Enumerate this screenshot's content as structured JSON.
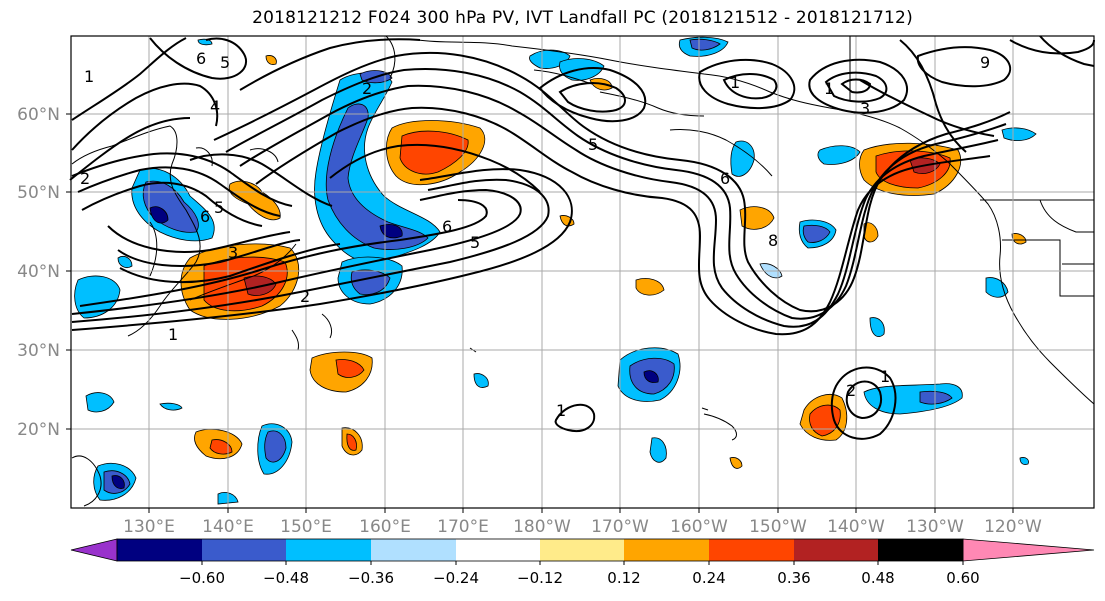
{
  "title": "2018121212 F024 300 hPa PV, IVT Landfall PC (2018121512 - 2018121712)",
  "map": {
    "lat_labels": [
      "60°N",
      "50°N",
      "40°N",
      "30°N",
      "20°N"
    ],
    "lon_labels": [
      "130°E",
      "140°E",
      "150°E",
      "160°E",
      "170°E",
      "180°W",
      "170°W",
      "160°W",
      "150°W",
      "140°W",
      "130°W",
      "120°W"
    ],
    "contour_labels": [
      "1",
      "2",
      "4",
      "5",
      "6",
      "1",
      "2",
      "3",
      "5",
      "6",
      "6",
      "5",
      "9",
      "1",
      "3",
      "5",
      "6",
      "8",
      "1",
      "2",
      "1",
      "2",
      "1"
    ]
  },
  "colorbar": {
    "tick_labels": [
      "−0.60",
      "−0.48",
      "−0.36",
      "−0.24",
      "−0.12",
      "0.12",
      "0.24",
      "0.36",
      "0.48",
      "0.60"
    ],
    "colors": {
      "under": "#9932cc",
      "bins": [
        "#000080",
        "#3a5bcc",
        "#00bfff",
        "#b0e0ff",
        "#ffffff",
        "#ffeb8a",
        "#ffa500",
        "#ff4500",
        "#b22222"
      ],
      "over": "#ff88b4"
    }
  }
}
